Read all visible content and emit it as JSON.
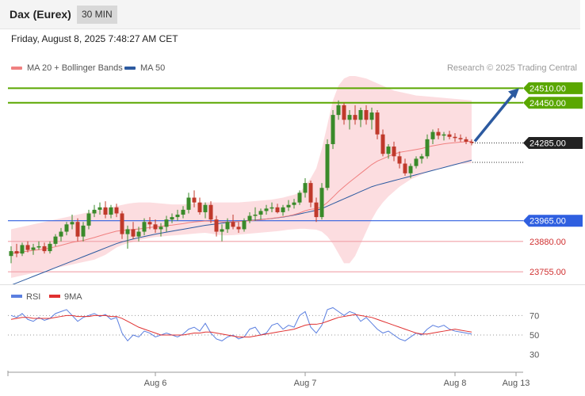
{
  "header": {
    "title": "Dax (Eurex)",
    "timeframe": "30 MIN"
  },
  "datetime": "Friday, August 8, 2025 7:48:27 AM CET",
  "legend": {
    "ma20_label": "MA 20 + Bollinger Bands",
    "ma20_color": "#f08080",
    "ma50_label": "MA 50",
    "ma50_color": "#2c5aa0"
  },
  "research": "Research © 2025 Trading Central",
  "colors": {
    "resistance": "#5aa700",
    "pivot": "#2f5fe0",
    "support": "#f0a0a8",
    "band_fill": "#fbd2d6",
    "candle_up": "#3a8a2a",
    "candle_down": "#c0392b",
    "arrow": "#2c5aa0",
    "rsi": "#5b7fe0",
    "rsi_ma": "#e03030"
  },
  "chart_data": {
    "type": "candlestick",
    "price_range": [
      23710,
      24560
    ],
    "current_price": 24285,
    "levels": [
      {
        "value": 24510,
        "label": "24510.00",
        "kind": "resistance"
      },
      {
        "value": 24450,
        "label": "24450.00",
        "kind": "resistance"
      },
      {
        "value": 24285,
        "label": "24285.00",
        "kind": "current"
      },
      {
        "value": 23965,
        "label": "23965.00",
        "kind": "pivot"
      },
      {
        "value": 23880,
        "label": "23880.00",
        "kind": "support"
      },
      {
        "value": 23755,
        "label": "23755.00",
        "kind": "support"
      }
    ],
    "forecast_target": 24510,
    "x_ticks": [
      {
        "label": "Aug 6",
        "index": 26
      },
      {
        "label": "Aug 7",
        "index": 53
      },
      {
        "label": "Aug 8",
        "index": 80
      },
      {
        "label": "Aug 13",
        "index": 91
      }
    ],
    "candles": [
      [
        23820,
        23860,
        23790,
        23840
      ],
      [
        23840,
        23870,
        23815,
        23830
      ],
      [
        23830,
        23875,
        23820,
        23865
      ],
      [
        23865,
        23880,
        23835,
        23845
      ],
      [
        23845,
        23870,
        23825,
        23855
      ],
      [
        23855,
        23880,
        23845,
        23860
      ],
      [
        23860,
        23875,
        23830,
        23840
      ],
      [
        23840,
        23880,
        23830,
        23870
      ],
      [
        23870,
        23910,
        23860,
        23900
      ],
      [
        23900,
        23935,
        23880,
        23920
      ],
      [
        23920,
        23960,
        23905,
        23950
      ],
      [
        23950,
        23990,
        23930,
        23960
      ],
      [
        23960,
        23975,
        23880,
        23900
      ],
      [
        23900,
        23960,
        23880,
        23945
      ],
      [
        23945,
        24010,
        23930,
        23995
      ],
      [
        23995,
        24030,
        23980,
        24010
      ],
      [
        24010,
        24040,
        23990,
        24020
      ],
      [
        24020,
        24045,
        23975,
        23990
      ],
      [
        23990,
        24030,
        23975,
        24020
      ],
      [
        24020,
        24035,
        23980,
        23995
      ],
      [
        23995,
        24005,
        23890,
        23910
      ],
      [
        23910,
        23945,
        23850,
        23930
      ],
      [
        23930,
        23960,
        23890,
        23900
      ],
      [
        23900,
        23940,
        23880,
        23920
      ],
      [
        23920,
        23975,
        23905,
        23960
      ],
      [
        23960,
        23980,
        23930,
        23950
      ],
      [
        23950,
        23970,
        23915,
        23930
      ],
      [
        23930,
        23955,
        23900,
        23940
      ],
      [
        23940,
        23985,
        23920,
        23970
      ],
      [
        23970,
        23995,
        23955,
        23980
      ],
      [
        23980,
        24010,
        23965,
        23990
      ],
      [
        23990,
        24025,
        23975,
        24010
      ],
      [
        24010,
        24080,
        23995,
        24060
      ],
      [
        24060,
        24090,
        24020,
        24040
      ],
      [
        24040,
        24060,
        23990,
        24000
      ],
      [
        24000,
        24040,
        23975,
        24030
      ],
      [
        24030,
        24045,
        23955,
        23970
      ],
      [
        23970,
        23985,
        23900,
        23920
      ],
      [
        23920,
        23950,
        23880,
        23930
      ],
      [
        23930,
        23975,
        23915,
        23960
      ],
      [
        23960,
        23990,
        23930,
        23940
      ],
      [
        23940,
        23960,
        23915,
        23930
      ],
      [
        23930,
        23975,
        23920,
        23965
      ],
      [
        23965,
        24000,
        23955,
        23985
      ],
      [
        23985,
        24020,
        23965,
        23990
      ],
      [
        23990,
        24015,
        23970,
        24005
      ],
      [
        24005,
        24030,
        23990,
        24015
      ],
      [
        24015,
        24040,
        24000,
        24020
      ],
      [
        24020,
        24035,
        23995,
        24000
      ],
      [
        24000,
        24030,
        23985,
        24020
      ],
      [
        24020,
        24050,
        24005,
        24030
      ],
      [
        24030,
        24055,
        24015,
        24040
      ],
      [
        24040,
        24090,
        24030,
        24080
      ],
      [
        24080,
        24140,
        24060,
        24120
      ],
      [
        24120,
        24130,
        24020,
        24040
      ],
      [
        24040,
        24060,
        23960,
        23980
      ],
      [
        23980,
        24120,
        23970,
        24100
      ],
      [
        24100,
        24300,
        24090,
        24280
      ],
      [
        24280,
        24420,
        24260,
        24400
      ],
      [
        24400,
        24460,
        24380,
        24440
      ],
      [
        24440,
        24450,
        24360,
        24380
      ],
      [
        24380,
        24420,
        24340,
        24400
      ],
      [
        24400,
        24440,
        24360,
        24380
      ],
      [
        24380,
        24430,
        24350,
        24420
      ],
      [
        24420,
        24440,
        24360,
        24380
      ],
      [
        24380,
        24430,
        24340,
        24410
      ],
      [
        24410,
        24420,
        24300,
        24320
      ],
      [
        24320,
        24340,
        24230,
        24240
      ],
      [
        24240,
        24280,
        24220,
        24270
      ],
      [
        24270,
        24290,
        24210,
        24230
      ],
      [
        24230,
        24250,
        24180,
        24200
      ],
      [
        24200,
        24220,
        24150,
        24160
      ],
      [
        24160,
        24200,
        24140,
        24190
      ],
      [
        24190,
        24230,
        24180,
        24220
      ],
      [
        24220,
        24240,
        24200,
        24230
      ],
      [
        24230,
        24320,
        24220,
        24300
      ],
      [
        24300,
        24340,
        24280,
        24330
      ],
      [
        24330,
        24345,
        24300,
        24315
      ],
      [
        24315,
        24330,
        24295,
        24320
      ],
      [
        24320,
        24335,
        24300,
        24310
      ],
      [
        24310,
        24325,
        24290,
        24305
      ],
      [
        24305,
        24320,
        24290,
        24300
      ],
      [
        24300,
        24310,
        24280,
        24290
      ],
      [
        24290,
        24300,
        24275,
        24285
      ]
    ],
    "ma20": [
      23830,
      23834,
      23837,
      23840,
      23843,
      23846,
      23849,
      23853,
      23858,
      23864,
      23870,
      23876,
      23880,
      23884,
      23890,
      23896,
      23903,
      23910,
      23916,
      23922,
      23925,
      23927,
      23929,
      23931,
      23934,
      23937,
      23940,
      23942,
      23945,
      23947,
      23950,
      23953,
      23957,
      23960,
      23962,
      23964,
      23963,
      23961,
      23960,
      23960,
      23961,
      23962,
      23963,
      23965,
      23967,
      23969,
      23972,
      23975,
      23978,
      23981,
      23985,
      23990,
      23997,
      24006,
      24012,
      24014,
      24022,
      24040,
      24062,
      24085,
      24105,
      24124,
      24142,
      24160,
      24178,
      24196,
      24210,
      24220,
      24230,
      24239,
      24246,
      24250,
      24254,
      24258,
      24262,
      24268,
      24273,
      24277,
      24281,
      24284,
      24286,
      24288,
      24290,
      24292
    ],
    "boll_upper": [
      23930,
      23935,
      23940,
      23945,
      23950,
      23955,
      23960,
      23965,
      23970,
      23975,
      23980,
      23985,
      23990,
      23995,
      24000,
      24005,
      24010,
      24015,
      24020,
      24025,
      24030,
      24035,
      24038,
      24040,
      24040,
      24040,
      24038,
      24036,
      24034,
      24032,
      24032,
      24032,
      24034,
      24036,
      24038,
      24040,
      24040,
      24040,
      24040,
      24040,
      24040,
      24040,
      24042,
      24044,
      24046,
      24048,
      24050,
      24052,
      24056,
      24060,
      24066,
      24072,
      24080,
      24110,
      24140,
      24180,
      24260,
      24360,
      24460,
      24520,
      24550,
      24560,
      24560,
      24555,
      24550,
      24540,
      24530,
      24520,
      24510,
      24500,
      24495,
      24490,
      24485,
      24480,
      24478,
      24476,
      24474,
      24472,
      24470,
      24468,
      24466,
      24464,
      24462,
      24460
    ],
    "boll_lower": [
      23730,
      23735,
      23740,
      23745,
      23750,
      23755,
      23760,
      23765,
      23770,
      23775,
      23780,
      23785,
      23790,
      23795,
      23800,
      23805,
      23815,
      23825,
      23840,
      23855,
      23865,
      23872,
      23878,
      23885,
      23890,
      23895,
      23898,
      23900,
      23902,
      23904,
      23906,
      23908,
      23910,
      23912,
      23914,
      23915,
      23912,
      23908,
      23905,
      23905,
      23906,
      23908,
      23910,
      23912,
      23914,
      23916,
      23918,
      23920,
      23922,
      23925,
      23928,
      23930,
      23932,
      23932,
      23930,
      23928,
      23920,
      23900,
      23870,
      23830,
      23790,
      23790,
      23820,
      23870,
      23920,
      23970,
      24010,
      24040,
      24065,
      24085,
      24105,
      24120,
      24135,
      24145,
      24155,
      24165,
      24172,
      24178,
      24184,
      24190,
      24194,
      24198,
      24200,
      24202
    ],
    "ma50": [
      23700,
      23709,
      23718,
      23727,
      23736,
      23745,
      23754,
      23763,
      23772,
      23781,
      23790,
      23799,
      23808,
      23817,
      23826,
      23835,
      23844,
      23853,
      23862,
      23871,
      23878,
      23884,
      23890,
      23895,
      23900,
      23905,
      23910,
      23914,
      23918,
      23922,
      23926,
      23930,
      23934,
      23938,
      23942,
      23946,
      23949,
      23952,
      23955,
      23958,
      23960,
      23962,
      23964,
      23966,
      23968,
      23970,
      23972,
      23974,
      23977,
      23980,
      23984,
      23988,
      23993,
      23998,
      24003,
      24008,
      24015,
      24025,
      24035,
      24045,
      24055,
      24065,
      24075,
      24085,
      24095,
      24105,
      24112,
      24118,
      24124,
      24130,
      24136,
      24142,
      24148,
      24154,
      24160,
      24166,
      24172,
      24178,
      24184,
      24190,
      24196,
      24202,
      24208,
      24214
    ],
    "rsi": {
      "range": [
        20,
        80
      ],
      "ticks": [
        70,
        50,
        30
      ],
      "rsi_label": "RSI",
      "ma_label": "9MA",
      "rsi": [
        70,
        68,
        72,
        66,
        64,
        68,
        65,
        67,
        72,
        74,
        76,
        70,
        64,
        68,
        70,
        72,
        69,
        71,
        66,
        68,
        52,
        44,
        50,
        48,
        54,
        52,
        48,
        50,
        52,
        50,
        48,
        51,
        56,
        58,
        54,
        62,
        52,
        46,
        44,
        48,
        50,
        46,
        48,
        56,
        58,
        50,
        52,
        60,
        62,
        56,
        60,
        58,
        70,
        74,
        58,
        52,
        60,
        76,
        78,
        74,
        70,
        74,
        72,
        64,
        68,
        62,
        56,
        52,
        54,
        50,
        46,
        44,
        48,
        52,
        50,
        56,
        60,
        58,
        60,
        56,
        54,
        53,
        52,
        51
      ],
      "ma": [
        66,
        67,
        68,
        68,
        67,
        67,
        67,
        67,
        68,
        69,
        70,
        70,
        69,
        69,
        69,
        70,
        70,
        70,
        69,
        69,
        67,
        64,
        61,
        58,
        56,
        54,
        52,
        50,
        50,
        50,
        50,
        50,
        51,
        52,
        52,
        53,
        53,
        52,
        51,
        50,
        49,
        48,
        48,
        48,
        49,
        50,
        51,
        52,
        53,
        54,
        55,
        56,
        58,
        60,
        61,
        61,
        62,
        64,
        66,
        68,
        69,
        70,
        71,
        70,
        69,
        68,
        66,
        64,
        62,
        60,
        58,
        56,
        54,
        52,
        51,
        51,
        52,
        53,
        54,
        55,
        56,
        55,
        54,
        53
      ]
    }
  }
}
